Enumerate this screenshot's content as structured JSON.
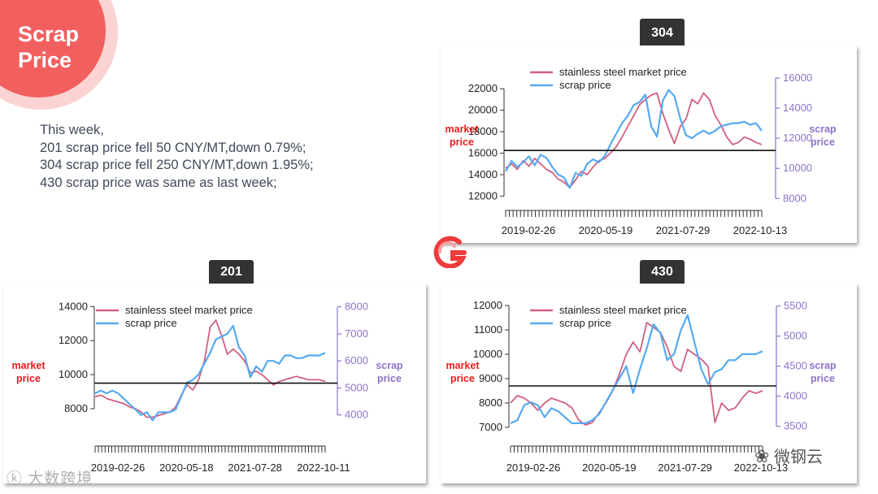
{
  "header": {
    "title_line1": "Scrap",
    "title_line2": "Price"
  },
  "summary": {
    "lines": [
      "This week,",
      "201 scrap price fell 50 CNY/MT,down 0.79%;",
      "304 scrap price fell 250 CNY/MT,down 1.95%;",
      "430 scrap price was same as last week;"
    ]
  },
  "footer": {
    "wechat": "微钢云",
    "watermark": "大数跨境"
  },
  "colors": {
    "market": "#d0607e",
    "scrap": "#56aaf0",
    "right_axis": "#8e72c8",
    "market_label": "#e81b1b",
    "accent": "#f25f5f"
  },
  "chart_data": [
    {
      "id": "304",
      "badge": "304",
      "type": "line",
      "legend": [
        "stainless steel market price",
        "scrap price"
      ],
      "ylabel_left": [
        "market",
        "price"
      ],
      "ylabel_right": [
        "scrap",
        "price"
      ],
      "left_ticks": [
        12000,
        14000,
        16000,
        18000,
        20000,
        22000
      ],
      "left_ylim": [
        11500,
        23000
      ],
      "right_ticks": [
        8000,
        10000,
        12000,
        14000,
        16000
      ],
      "right_ylim": [
        7800,
        16000
      ],
      "x_ticks": [
        "2019-02-26",
        "2020-05-19",
        "2021-07-29",
        "2022-10-13"
      ],
      "hline_left": 16250,
      "series": [
        {
          "name": "stainless steel market price",
          "color": "#d0607e",
          "values": [
            14600,
            15000,
            14500,
            15300,
            14800,
            15500,
            15000,
            14500,
            14200,
            13600,
            13300,
            12800,
            13500,
            14300,
            14000,
            14700,
            15300,
            15500,
            16000,
            16600,
            17500,
            18500,
            19500,
            20500,
            21000,
            21400,
            21600,
            19700,
            18200,
            16900,
            18500,
            19200,
            21000,
            20600,
            21600,
            21000,
            19500,
            18600,
            17500,
            16800,
            17000,
            17500,
            17300,
            17000,
            16800
          ]
        },
        {
          "name": "scrap price",
          "color": "#56aaf0",
          "values": [
            9800,
            10500,
            10100,
            10400,
            10800,
            10200,
            10900,
            10700,
            10100,
            9600,
            9400,
            8700,
            9700,
            9500,
            10300,
            10600,
            10400,
            10800,
            11600,
            12300,
            13000,
            13500,
            14200,
            14400,
            14900,
            12800,
            12100,
            14500,
            15200,
            14800,
            13300,
            12200,
            12000,
            12300,
            12500,
            12300,
            12500,
            12800,
            12900,
            13000,
            13000,
            13100,
            12900,
            13000,
            12500
          ]
        }
      ]
    },
    {
      "id": "201",
      "badge": "201",
      "type": "line",
      "legend": [
        "stainless steel market price",
        "scrap price"
      ],
      "ylabel_left": [
        "market",
        "price"
      ],
      "ylabel_right": [
        "scrap",
        "price"
      ],
      "left_ticks": [
        8000,
        10000,
        12000,
        14000
      ],
      "left_ylim": [
        7000,
        14300
      ],
      "right_ticks": [
        4000,
        5000,
        6000,
        7000,
        8000
      ],
      "right_ylim": [
        3600,
        8200
      ],
      "x_ticks": [
        "2019-02-26",
        "2020-05-18",
        "2021-07-28",
        "2022-10-11"
      ],
      "hline_left": 9500,
      "series": [
        {
          "name": "stainless steel market price",
          "color": "#d0607e",
          "values": [
            8700,
            8800,
            8600,
            8500,
            8400,
            8300,
            8100,
            8000,
            7800,
            7500,
            7500,
            7600,
            7700,
            7800,
            8100,
            8800,
            9400,
            9100,
            9700,
            10800,
            12800,
            13200,
            12300,
            11200,
            11500,
            11200,
            10800,
            10100,
            10200,
            10000,
            9700,
            9400,
            9600,
            9700,
            9800,
            9900,
            9800,
            9700,
            9700,
            9700,
            9600
          ]
        },
        {
          "name": "scrap price",
          "color": "#56aaf0",
          "values": [
            4800,
            4900,
            4800,
            4900,
            4800,
            4600,
            4400,
            4200,
            4000,
            4100,
            3800,
            4100,
            4100,
            4100,
            4200,
            4700,
            5200,
            5300,
            5500,
            5900,
            6300,
            6800,
            6900,
            7000,
            7300,
            6500,
            6200,
            5400,
            5800,
            5600,
            6000,
            6000,
            5900,
            6200,
            6200,
            6100,
            6100,
            6200,
            6200,
            6200,
            6300
          ]
        }
      ]
    },
    {
      "id": "430",
      "badge": "430",
      "type": "line",
      "legend": [
        "stainless steel market price",
        "scrap price"
      ],
      "ylabel_left": [
        "market",
        "price"
      ],
      "ylabel_right": [
        "scrap",
        "price"
      ],
      "left_ticks": [
        7000,
        8000,
        9000,
        10000,
        11000,
        12000
      ],
      "left_ylim": [
        6800,
        12100
      ],
      "right_ticks": [
        3500,
        4000,
        4500,
        5000,
        5500
      ],
      "right_ylim": [
        3400,
        5550
      ],
      "x_ticks": [
        "2019-02-26",
        "2020-05-19",
        "2021-07-29",
        "2022-10-13"
      ],
      "hline_left": 8700,
      "series": [
        {
          "name": "stainless steel market price",
          "color": "#d0607e",
          "values": [
            8000,
            8300,
            8200,
            8000,
            7700,
            8000,
            8200,
            8100,
            8000,
            7800,
            7300,
            7100,
            7200,
            7600,
            8000,
            8500,
            9200,
            10000,
            10500,
            10100,
            11300,
            11100,
            10900,
            10300,
            9500,
            9300,
            10200,
            10000,
            9800,
            9500,
            7200,
            8000,
            7700,
            7800,
            8200,
            8500,
            8400,
            8500
          ]
        },
        {
          "name": "scrap price",
          "color": "#56aaf0",
          "values": [
            3550,
            3600,
            3850,
            3900,
            3850,
            3650,
            3800,
            3750,
            3650,
            3550,
            3550,
            3550,
            3600,
            3700,
            3900,
            4100,
            4300,
            4500,
            4050,
            4450,
            4800,
            5200,
            5050,
            4600,
            4700,
            5100,
            5350,
            4900,
            4450,
            4200,
            4400,
            4450,
            4600,
            4600,
            4700,
            4700,
            4700,
            4750
          ]
        }
      ]
    }
  ]
}
